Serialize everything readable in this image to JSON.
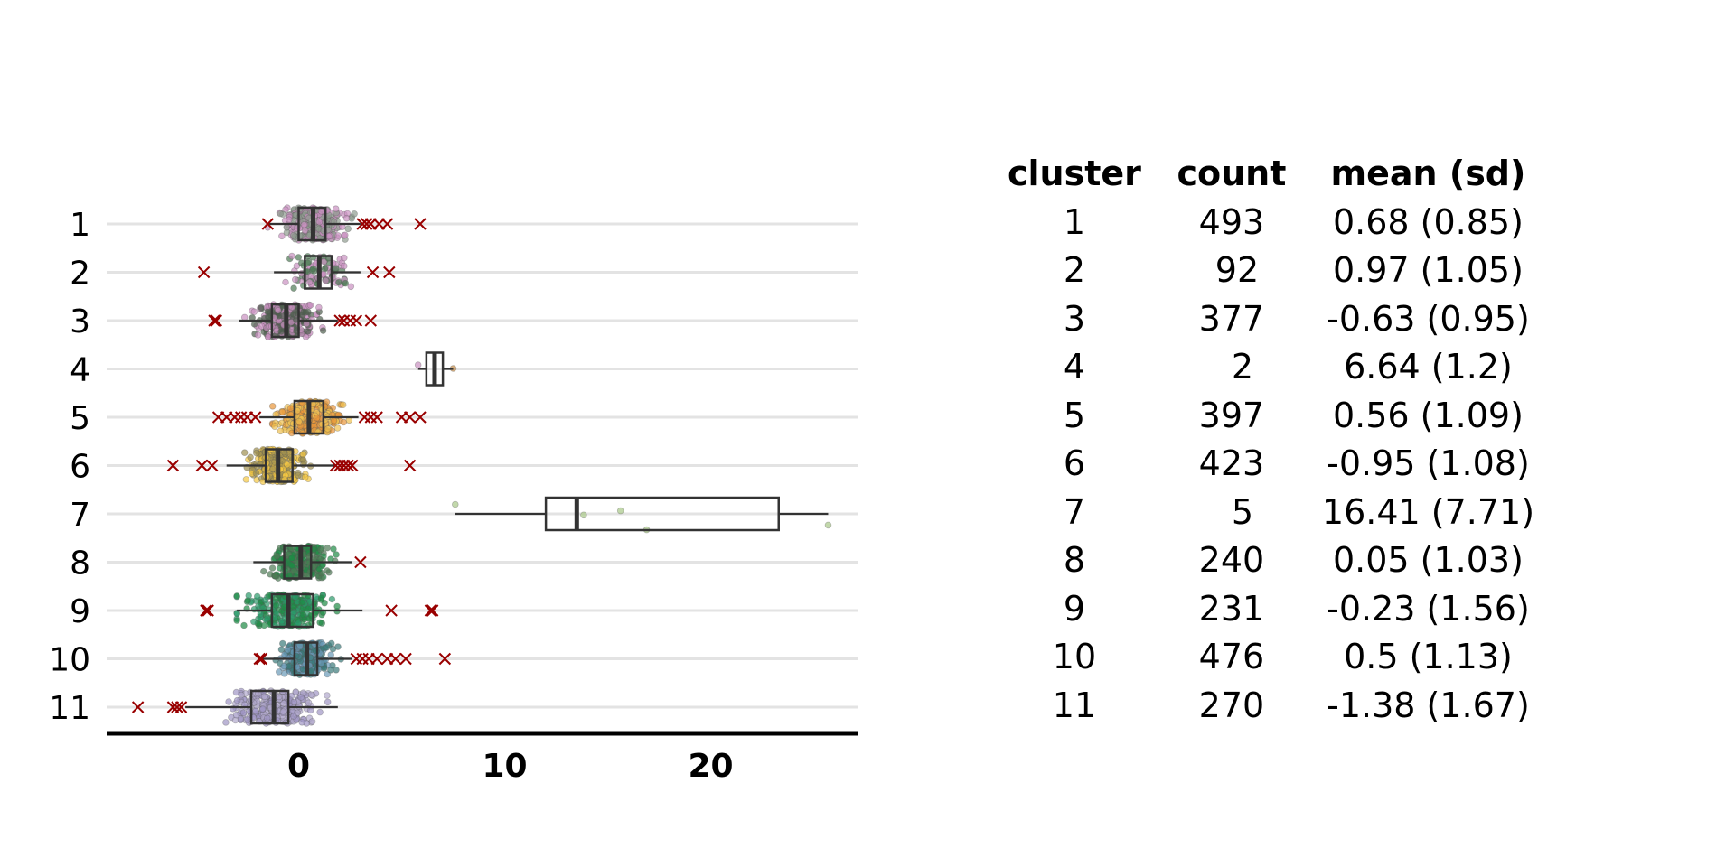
{
  "chart_data": {
    "type": "box",
    "orientation": "horizontal",
    "categories": [
      "1",
      "2",
      "3",
      "4",
      "5",
      "6",
      "7",
      "8",
      "9",
      "10",
      "11"
    ],
    "x_ticks": [
      0,
      10,
      20
    ],
    "xlim": [
      -9.5,
      27
    ],
    "grid": "horizontal",
    "outlier_marker": "x",
    "outlier_color": "#990000",
    "boxes": [
      {
        "cluster": "1",
        "q1": 0.0,
        "median": 0.7,
        "q3": 1.3,
        "whisker_low": -1.5,
        "whisker_high": 3.0,
        "outliers": [
          -1.5,
          3.1,
          3.3,
          3.5,
          3.9,
          4.3,
          5.9
        ],
        "colors": [
          "#c990c0",
          "#8e9b8f"
        ]
      },
      {
        "cluster": "2",
        "q1": 0.3,
        "median": 1.0,
        "q3": 1.6,
        "whisker_low": -1.2,
        "whisker_high": 3.0,
        "outliers": [
          -4.6,
          3.6,
          4.4
        ],
        "colors": [
          "#4e7a55",
          "#c990c0"
        ]
      },
      {
        "cluster": "3",
        "q1": -1.3,
        "median": -0.6,
        "q3": 0.0,
        "whisker_low": -2.9,
        "whisker_high": 1.9,
        "outliers": [
          -4.1,
          -4.0,
          2.0,
          2.2,
          2.5,
          2.8,
          3.5
        ],
        "colors": [
          "#4f5f4f",
          "#c990c0"
        ]
      },
      {
        "cluster": "4",
        "q1": 6.2,
        "median": 6.6,
        "q3": 7.0,
        "whisker_low": 5.8,
        "whisker_high": 7.5,
        "outliers": [],
        "colors": [
          "#c990c0",
          "#c08a4a"
        ]
      },
      {
        "cluster": "5",
        "q1": -0.2,
        "median": 0.5,
        "q3": 1.2,
        "whisker_low": -1.9,
        "whisker_high": 2.9,
        "outliers": [
          -3.9,
          -3.5,
          -3.1,
          -2.8,
          -2.5,
          -2.1,
          3.2,
          3.5,
          3.8,
          5.0,
          5.4,
          5.9
        ],
        "colors": [
          "#e8953a",
          "#f0c050"
        ]
      },
      {
        "cluster": "6",
        "q1": -1.6,
        "median": -1.0,
        "q3": -0.3,
        "whisker_low": -3.5,
        "whisker_high": 1.8,
        "outliers": [
          -6.1,
          -4.7,
          -4.2,
          1.8,
          2.0,
          2.2,
          2.4,
          2.6,
          5.4
        ],
        "colors": [
          "#f5c842",
          "#a09050"
        ]
      },
      {
        "cluster": "7",
        "q1": 12.0,
        "median": 13.5,
        "q3": 23.3,
        "whisker_low": 7.6,
        "whisker_high": 25.7,
        "outliers": [],
        "colors": [
          "#a8c888"
        ]
      },
      {
        "cluster": "8",
        "q1": -0.7,
        "median": 0.1,
        "q3": 0.6,
        "whisker_low": -2.2,
        "whisker_high": 2.6,
        "outliers": [
          3.0
        ],
        "colors": [
          "#1e8a45",
          "#4e7a55"
        ]
      },
      {
        "cluster": "9",
        "q1": -1.3,
        "median": -0.5,
        "q3": 0.7,
        "whisker_low": -3.0,
        "whisker_high": 3.1,
        "outliers": [
          -4.5,
          -4.4,
          4.5,
          6.4,
          6.5
        ],
        "colors": [
          "#2a9a6a",
          "#1e8a45"
        ]
      },
      {
        "cluster": "10",
        "q1": -0.2,
        "median": 0.4,
        "q3": 0.9,
        "whisker_low": -1.8,
        "whisker_high": 2.6,
        "outliers": [
          -1.9,
          -1.8,
          2.8,
          3.1,
          3.4,
          3.8,
          4.3,
          4.7,
          5.2,
          7.1
        ],
        "colors": [
          "#6a9ab8",
          "#3a7a7a"
        ]
      },
      {
        "cluster": "11",
        "q1": -2.3,
        "median": -1.2,
        "q3": -0.5,
        "whisker_low": -5.5,
        "whisker_high": 1.9,
        "outliers": [
          -7.8,
          -6.1,
          -5.9,
          -5.7
        ],
        "colors": [
          "#9f95c5",
          "#b0a8cc"
        ]
      }
    ],
    "table": {
      "headers": [
        "cluster",
        "count",
        "mean (sd)"
      ],
      "rows": [
        [
          "1",
          "493",
          "0.68 (0.85)"
        ],
        [
          "2",
          " 92",
          "0.97 (1.05)"
        ],
        [
          "3",
          "377",
          "-0.63 (0.95)"
        ],
        [
          "4",
          "  2",
          "6.64 (1.2)"
        ],
        [
          "5",
          "397",
          "0.56 (1.09)"
        ],
        [
          "6",
          "423",
          "-0.95 (1.08)"
        ],
        [
          "7",
          "  5",
          "16.41 (7.71)"
        ],
        [
          "8",
          "240",
          "0.05 (1.03)"
        ],
        [
          "9",
          "231",
          "-0.23 (1.56)"
        ],
        [
          "10",
          "476",
          "0.5 (1.13)"
        ],
        [
          "11",
          "270",
          "-1.38 (1.67)"
        ]
      ]
    }
  }
}
